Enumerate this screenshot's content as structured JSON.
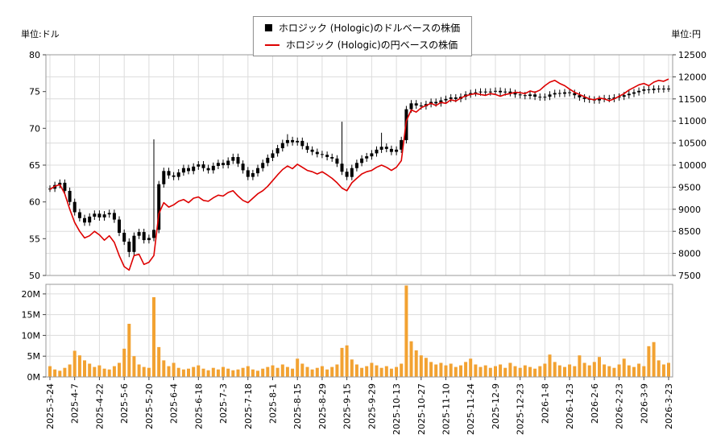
{
  "axes": {
    "unit_left": "単位:ドル",
    "unit_right": "単位:円"
  },
  "legend": {
    "items": [
      {
        "label": "ホロジック (Hologic)のドルベースの株価",
        "marker": "black-square",
        "color": "#000000"
      },
      {
        "label": "ホロジック (Hologic)の円ベースの株価",
        "marker": "red-line",
        "color": "#dd0000"
      }
    ]
  },
  "chart_data": {
    "type": [
      "candlestick",
      "line",
      "bar"
    ],
    "x_tick_labels": [
      "2025-3-24",
      "2025-4-7",
      "2025-4-22",
      "2025-5-6",
      "2025-5-20",
      "2025-6-4",
      "2025-6-18",
      "2025-7-3",
      "2025-7-18",
      "2025-8-1",
      "2025-8-15",
      "2025-8-29",
      "2025-9-15",
      "2025-9-29",
      "2025-10-13",
      "2025-10-27",
      "2025-11-10",
      "2025-11-24",
      "2025-12-9",
      "2025-12-23",
      "2026-1-8",
      "2026-1-23",
      "2026-2-6",
      "2026-2-23",
      "2026-3-9",
      "2026-3-23"
    ],
    "points_per_tick": 5,
    "left_axis": {
      "label": "単位:ドル",
      "min": 50,
      "max": 80,
      "ticks": [
        50,
        55,
        60,
        65,
        70,
        75,
        80
      ]
    },
    "right_axis": {
      "label": "単位:円",
      "min": 7500,
      "max": 12500,
      "ticks": [
        7500,
        8000,
        8500,
        9000,
        9500,
        10000,
        10500,
        11000,
        11500,
        12000,
        12500
      ]
    },
    "volume_axis": {
      "min": 0,
      "ticks": [
        0,
        5,
        10,
        15,
        20
      ],
      "tick_suffix": "M"
    },
    "grid": true,
    "legend_position": "top-center",
    "series": [
      {
        "name": "usd-price",
        "display_name": "ホロジック (Hologic)のドルベースの株価",
        "type": "candlestick",
        "axis": "left",
        "color": "#000000",
        "close": [
          61.8,
          62.3,
          62.6,
          61.5,
          60.0,
          58.6,
          57.8,
          57.2,
          58.0,
          58.4,
          57.9,
          58.3,
          58.5,
          57.6,
          55.8,
          54.6,
          53.2,
          55.4,
          55.9,
          54.8,
          55.1,
          56.2,
          62.4,
          64.2,
          63.6,
          63.4,
          64.0,
          64.6,
          64.2,
          64.8,
          65.1,
          64.6,
          64.3,
          64.9,
          65.3,
          65.0,
          65.6,
          66.1,
          65.2,
          64.3,
          63.4,
          63.9,
          64.6,
          65.3,
          66.0,
          66.6,
          67.3,
          68.0,
          68.4,
          68.1,
          68.3,
          67.6,
          67.1,
          66.8,
          66.5,
          66.4,
          66.1,
          65.9,
          65.2,
          64.1,
          63.4,
          64.6,
          65.3,
          65.9,
          66.2,
          66.6,
          67.1,
          67.5,
          67.2,
          66.8,
          67.1,
          68.4,
          72.6,
          73.4,
          73.1,
          73.0,
          73.3,
          73.6,
          73.4,
          73.8,
          74.0,
          74.2,
          74.0,
          74.3,
          74.6,
          74.8,
          74.9,
          75.0,
          74.9,
          75.0,
          75.1,
          74.9,
          75.0,
          74.8,
          74.6,
          74.5,
          74.4,
          74.6,
          74.3,
          74.2,
          74.3,
          74.6,
          74.8,
          74.7,
          74.9,
          74.8,
          74.5,
          74.2,
          74.0,
          73.9,
          73.8,
          74.0,
          74.1,
          74.0,
          74.2,
          74.3,
          74.5,
          74.7,
          74.9,
          75.1,
          75.3,
          75.2,
          75.4,
          75.3,
          75.4,
          75.4
        ]
      },
      {
        "name": "jpy-price",
        "display_name": "ホロジック (Hologic)の円ベースの株価",
        "type": "line",
        "axis": "right",
        "color": "#dd0000",
        "values": [
          9450,
          9520,
          9560,
          9350,
          9000,
          8700,
          8500,
          8350,
          8400,
          8500,
          8420,
          8300,
          8400,
          8250,
          7950,
          7700,
          7620,
          7950,
          7980,
          7750,
          7800,
          7950,
          8900,
          9150,
          9050,
          9100,
          9180,
          9220,
          9150,
          9250,
          9280,
          9200,
          9180,
          9260,
          9320,
          9300,
          9380,
          9420,
          9300,
          9200,
          9150,
          9250,
          9350,
          9420,
          9520,
          9650,
          9780,
          9900,
          9980,
          9920,
          10020,
          9950,
          9880,
          9850,
          9800,
          9850,
          9780,
          9700,
          9600,
          9480,
          9420,
          9600,
          9700,
          9800,
          9850,
          9880,
          9950,
          10000,
          9950,
          9880,
          9950,
          10100,
          11000,
          11250,
          11200,
          11300,
          11350,
          11400,
          11350,
          11420,
          11400,
          11480,
          11450,
          11520,
          11570,
          11600,
          11620,
          11600,
          11580,
          11620,
          11600,
          11560,
          11600,
          11620,
          11650,
          11640,
          11620,
          11680,
          11650,
          11700,
          11800,
          11880,
          11920,
          11850,
          11800,
          11720,
          11650,
          11600,
          11550,
          11500,
          11480,
          11520,
          11500,
          11460,
          11500,
          11560,
          11620,
          11700,
          11760,
          11820,
          11850,
          11800,
          11880,
          11920,
          11900,
          11950
        ]
      },
      {
        "name": "volume",
        "type": "bar",
        "panel": "volume",
        "color": "#f2a232",
        "values_millions": [
          2.6,
          1.8,
          1.5,
          2.2,
          3.0,
          6.3,
          5.2,
          4.0,
          3.2,
          2.4,
          2.8,
          2.0,
          1.8,
          2.6,
          3.4,
          6.8,
          12.8,
          5.0,
          3.0,
          2.4,
          2.2,
          19.2,
          7.2,
          4.0,
          2.6,
          3.4,
          2.2,
          1.8,
          2.0,
          2.4,
          2.8,
          2.0,
          1.6,
          2.2,
          1.8,
          2.4,
          2.0,
          1.6,
          1.8,
          2.2,
          2.6,
          1.8,
          1.5,
          2.0,
          2.4,
          2.8,
          2.2,
          3.0,
          2.4,
          2.0,
          4.4,
          3.2,
          2.4,
          1.8,
          2.2,
          2.6,
          1.8,
          2.4,
          3.0,
          7.0,
          7.6,
          4.2,
          3.0,
          2.2,
          2.6,
          3.4,
          2.8,
          2.2,
          2.6,
          2.0,
          2.4,
          3.2,
          22.0,
          8.6,
          6.4,
          5.2,
          4.6,
          3.6,
          3.0,
          3.4,
          2.8,
          3.2,
          2.4,
          2.8,
          3.6,
          4.4,
          3.0,
          2.4,
          2.8,
          2.2,
          2.6,
          3.0,
          2.2,
          3.4,
          2.6,
          2.2,
          2.8,
          2.4,
          2.0,
          2.6,
          3.2,
          5.4,
          3.6,
          2.8,
          2.4,
          3.0,
          2.6,
          5.2,
          3.4,
          2.8,
          3.6,
          4.8,
          3.0,
          2.6,
          2.2,
          3.0,
          4.4,
          2.8,
          2.4,
          3.2,
          2.6,
          7.4,
          8.4,
          4.0,
          3.0,
          3.4
        ]
      }
    ],
    "wick_overrides": {
      "16": {
        "low": 52.5
      },
      "21": {
        "high": 68.5
      },
      "48": {
        "high": 69.2
      },
      "59": {
        "high": 70.9
      },
      "67": {
        "high": 69.4
      }
    }
  }
}
